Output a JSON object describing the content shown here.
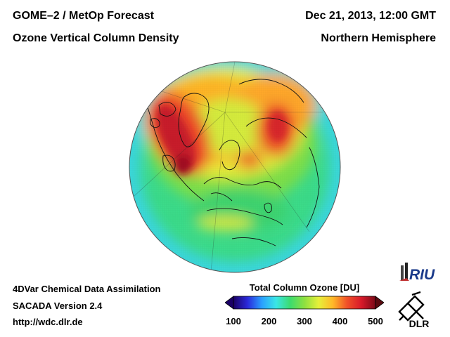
{
  "header": {
    "title_line1": "GOME–2 / MetOp Forecast",
    "title_line2": "Ozone Vertical Column Density",
    "date": "Dec 21, 2013, 12:00 GMT",
    "region": "Northern Hemisphere"
  },
  "footer": {
    "line1": "4DVar Chemical Data Assimilation",
    "line2": "SACADA Version 2.4",
    "line3": "http://wdc.dlr.de"
  },
  "colorbar": {
    "title": "Total Column Ozone [DU]",
    "ticks": [
      "100",
      "200",
      "300",
      "400",
      "500"
    ],
    "min": 100,
    "max": 500,
    "colors": [
      "#1a0066",
      "#2a2adc",
      "#2aa0ff",
      "#3ae6e6",
      "#3cdc6e",
      "#8ee040",
      "#e6f03a",
      "#ffb828",
      "#f05028",
      "#d81a2a",
      "#7a0a18"
    ]
  },
  "logos": {
    "riu": "RIU",
    "dlr": "DLR"
  }
}
